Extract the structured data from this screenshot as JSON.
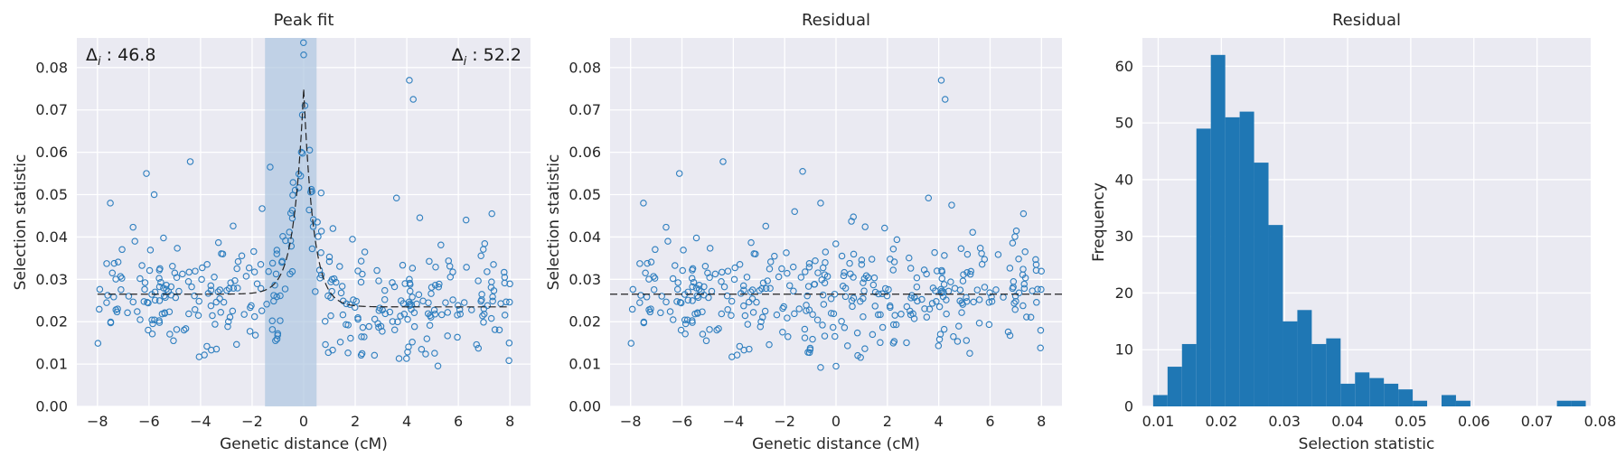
{
  "chart_data": [
    {
      "type": "scatter",
      "title": "Peak fit",
      "xlabel": "Genetic distance (cM)",
      "ylabel": "Selection statistic",
      "xlim": [
        -8.8,
        8.8
      ],
      "ylim": [
        0,
        0.087
      ],
      "xticks": [
        "−8",
        "−6",
        "−4",
        "−2",
        "0",
        "2",
        "4",
        "6",
        "8"
      ],
      "yticks": [
        "0.00",
        "0.01",
        "0.02",
        "0.03",
        "0.04",
        "0.05",
        "0.06",
        "0.07",
        "0.08"
      ],
      "grid": true,
      "annotations": [
        {
          "label": "Δ",
          "sub": "i",
          "value": " : 46.8",
          "position": "top-left"
        },
        {
          "label": "Δ",
          "sub": "i",
          "value": " : 52.2",
          "position": "top-right"
        }
      ],
      "highlight_region": {
        "x_start": -1.5,
        "x_end": 0.5
      },
      "fit_curve": {
        "baseline_left": 0.0265,
        "baseline_right": 0.0235,
        "peak_x": 0.0,
        "peak_y": 0.075,
        "style": "dashed"
      },
      "notable_points": [
        {
          "x": 0.0,
          "y": 0.083
        },
        {
          "x": 0.05,
          "y": 0.071
        },
        {
          "x": 4.1,
          "y": 0.077
        },
        {
          "x": 4.25,
          "y": 0.0725
        },
        {
          "x": -4.4,
          "y": 0.0578
        },
        {
          "x": -6.1,
          "y": 0.055
        },
        {
          "x": -1.3,
          "y": 0.0565
        },
        {
          "x": -5.8,
          "y": 0.05
        },
        {
          "x": 3.6,
          "y": 0.0492
        },
        {
          "x": -7.5,
          "y": 0.048
        },
        {
          "x": 7.3,
          "y": 0.0455
        },
        {
          "x": 3.7,
          "y": 0.0113
        },
        {
          "x": 6.3,
          "y": 0.044
        },
        {
          "x": 4.1,
          "y": 0.03
        }
      ]
    },
    {
      "type": "scatter",
      "title": "Residual",
      "xlabel": "Genetic distance (cM)",
      "ylabel": "Selection statistic",
      "xlim": [
        -8.8,
        8.8
      ],
      "ylim": [
        0,
        0.087
      ],
      "xticks": [
        "−8",
        "−6",
        "−4",
        "−2",
        "0",
        "2",
        "4",
        "6",
        "8"
      ],
      "yticks": [
        "0.00",
        "0.01",
        "0.02",
        "0.03",
        "0.04",
        "0.05",
        "0.06",
        "0.07",
        "0.08"
      ],
      "grid": true,
      "reference_line": {
        "y": 0.0265,
        "style": "dashed"
      },
      "notable_points": [
        {
          "x": 4.1,
          "y": 0.077
        },
        {
          "x": 4.25,
          "y": 0.0725
        },
        {
          "x": -4.4,
          "y": 0.0578
        },
        {
          "x": -6.1,
          "y": 0.055
        },
        {
          "x": -1.3,
          "y": 0.0555
        },
        {
          "x": -0.6,
          "y": 0.048
        },
        {
          "x": 3.6,
          "y": 0.0492
        },
        {
          "x": -7.5,
          "y": 0.048
        },
        {
          "x": 7.3,
          "y": 0.0455
        },
        {
          "x": 0.6,
          "y": 0.0437
        },
        {
          "x": -0.6,
          "y": 0.0092
        },
        {
          "x": 0.0,
          "y": 0.0095
        }
      ]
    },
    {
      "type": "bar",
      "subtype": "histogram",
      "title": "Residual",
      "xlabel": "Selection statistic",
      "ylabel": "Frequency",
      "xlim": [
        0.0075,
        0.0785
      ],
      "ylim": [
        0,
        65
      ],
      "xticks": [
        "0.01",
        "0.02",
        "0.03",
        "0.04",
        "0.05",
        "0.06",
        "0.07",
        "0.08"
      ],
      "yticks": [
        "0",
        "10",
        "20",
        "30",
        "40",
        "50",
        "60"
      ],
      "grid": true,
      "bin_start": 0.0092,
      "bin_width": 0.002284,
      "values": [
        2,
        7,
        11,
        49,
        62,
        51,
        52,
        43,
        32,
        15,
        17,
        11,
        12,
        4,
        6,
        5,
        4,
        3,
        1,
        0,
        2,
        1,
        0,
        0,
        0,
        0,
        0,
        0,
        1,
        1
      ]
    }
  ]
}
